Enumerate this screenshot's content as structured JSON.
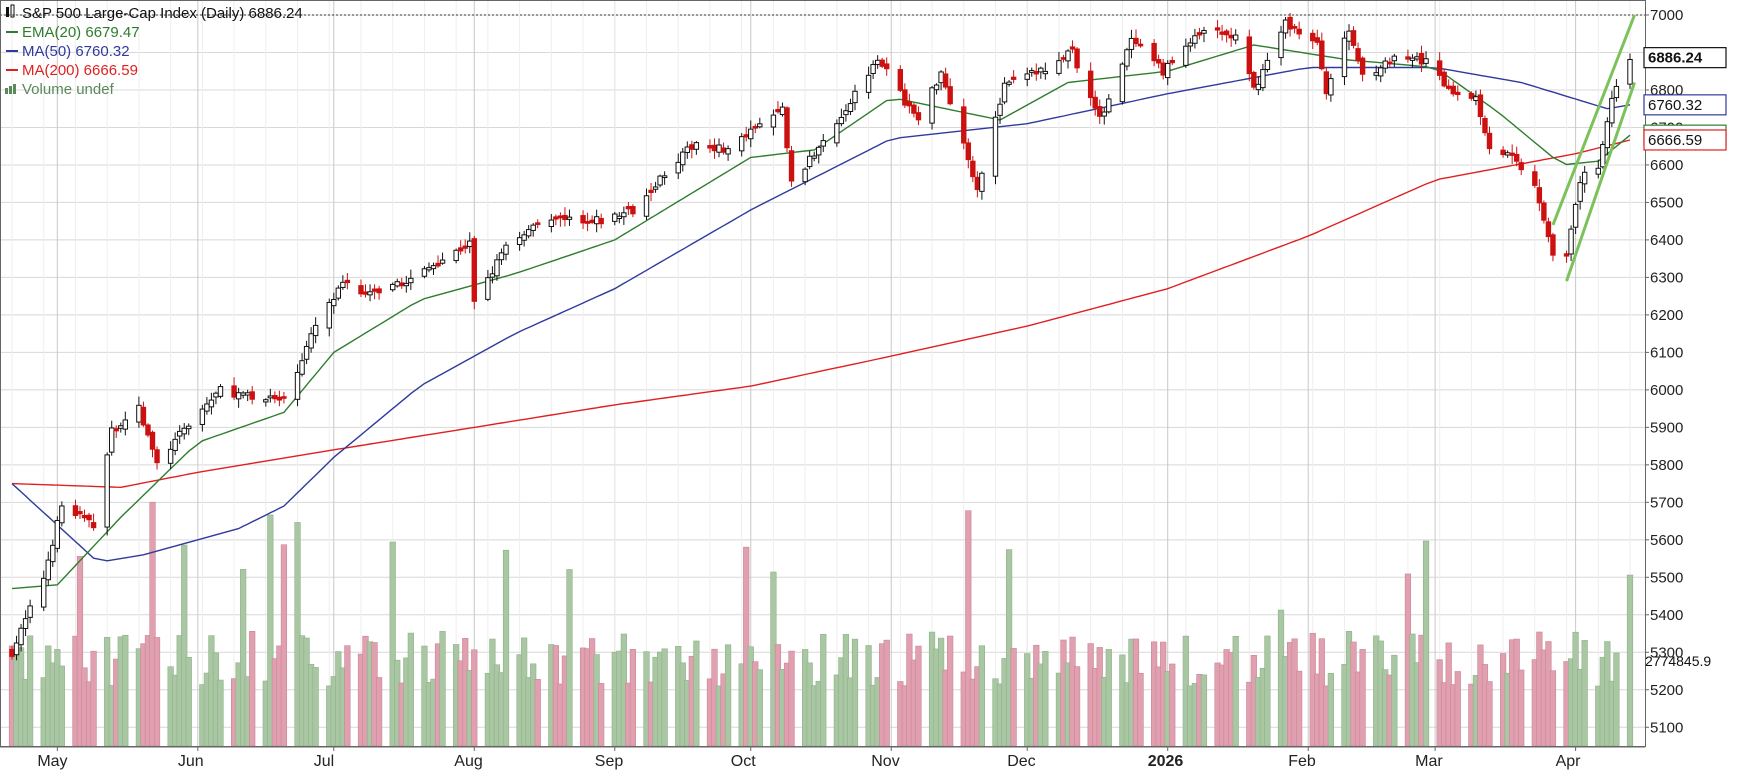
{
  "chart_data": {
    "type": "candlestick",
    "title": "S&P 500 Large-Cap Index (Daily) 6886.24",
    "legend_placement": "top-left",
    "grid": true,
    "x_axis": {
      "ticks": [
        {
          "label": "May",
          "date": "2025-05-01",
          "bold": false
        },
        {
          "label": "Jun",
          "date": "2025-06-01",
          "bold": false
        },
        {
          "label": "Jul",
          "date": "2025-07-01",
          "bold": false
        },
        {
          "label": "Aug",
          "date": "2025-08-01",
          "bold": false
        },
        {
          "label": "Sep",
          "date": "2025-09-01",
          "bold": false
        },
        {
          "label": "Oct",
          "date": "2025-10-01",
          "bold": false
        },
        {
          "label": "Nov",
          "date": "2025-11-01",
          "bold": false
        },
        {
          "label": "Dec",
          "date": "2025-12-01",
          "bold": false
        },
        {
          "label": "2026",
          "date": "2026-01-01",
          "bold": true
        },
        {
          "label": "Feb",
          "date": "2026-02-01",
          "bold": false
        },
        {
          "label": "Mar",
          "date": "2026-03-01",
          "bold": false
        },
        {
          "label": "Apr",
          "date": "2026-04-01",
          "bold": false
        }
      ]
    },
    "y_axis": {
      "position": "right",
      "range": [
        5050,
        7040
      ],
      "ticks": [
        5100,
        5200,
        5300,
        5400,
        5500,
        5600,
        5700,
        5800,
        5900,
        6000,
        6100,
        6200,
        6300,
        6400,
        6500,
        6600,
        6700,
        6800,
        6900,
        7000
      ],
      "volume_label": "2774845.9"
    },
    "reference_line": {
      "value": 7000,
      "style": "dotted"
    },
    "legend": [
      {
        "label": "S&P 500 Large-Cap Index (Daily) 6886.24",
        "color": "#111111",
        "icon": "candlestick-icon"
      },
      {
        "label": "EMA(20) 6679.47",
        "color": "#2e7d2e",
        "icon": "line-icon"
      },
      {
        "label": "MA(50) 6760.32",
        "color": "#2f3a9e",
        "icon": "line-icon"
      },
      {
        "label": "MA(200) 6666.59",
        "color": "#e02020",
        "icon": "line-icon"
      },
      {
        "label": "Volume undef",
        "color": "#5a8a5a",
        "icon": "volume-bars-icon"
      }
    ],
    "last_value_labels": [
      {
        "text": "6886.24",
        "value": 6886.24,
        "border": "#111111",
        "text_color": "#111111",
        "bold": true
      },
      {
        "text": "6760.32",
        "value": 6760.32,
        "border": "#2f3a9e",
        "text_color": "#111111",
        "bold": false
      },
      {
        "text": "6679.47",
        "value": 6679.47,
        "border": "#2e7d2e",
        "text_color": "#111111",
        "bold": false
      },
      {
        "text": "6666.59",
        "value": 6666.59,
        "border": "#e02020",
        "text_color": "#111111",
        "bold": false
      }
    ],
    "price_anchors": [
      [
        "2025-04-21",
        5300
      ],
      [
        "2025-04-28",
        5500
      ],
      [
        "2025-05-02",
        5690
      ],
      [
        "2025-05-09",
        5640
      ],
      [
        "2025-05-13",
        5890
      ],
      [
        "2025-05-19",
        5950
      ],
      [
        "2025-05-23",
        5800
      ],
      [
        "2025-05-30",
        5910
      ],
      [
        "2025-06-06",
        6000
      ],
      [
        "2025-06-13",
        5980
      ],
      [
        "2025-06-20",
        5970
      ],
      [
        "2025-06-27",
        6170
      ],
      [
        "2025-07-03",
        6280
      ],
      [
        "2025-07-11",
        6250
      ],
      [
        "2025-07-18",
        6300
      ],
      [
        "2025-07-31",
        6390
      ],
      [
        "2025-08-01",
        6240
      ],
      [
        "2025-08-08",
        6380
      ],
      [
        "2025-08-15",
        6450
      ],
      [
        "2025-08-22",
        6460
      ],
      [
        "2025-08-29",
        6450
      ],
      [
        "2025-09-05",
        6480
      ],
      [
        "2025-09-12",
        6580
      ],
      [
        "2025-09-19",
        6660
      ],
      [
        "2025-09-26",
        6640
      ],
      [
        "2025-10-08",
        6750
      ],
      [
        "2025-10-10",
        6550
      ],
      [
        "2025-10-17",
        6660
      ],
      [
        "2025-10-24",
        6790
      ],
      [
        "2025-10-29",
        6890
      ],
      [
        "2025-11-04",
        6770
      ],
      [
        "2025-11-07",
        6720
      ],
      [
        "2025-11-12",
        6850
      ],
      [
        "2025-11-20",
        6540
      ],
      [
        "2025-11-26",
        6810
      ],
      [
        "2025-12-05",
        6860
      ],
      [
        "2025-12-11",
        6900
      ],
      [
        "2025-12-17",
        6720
      ],
      [
        "2025-12-24",
        6930
      ],
      [
        "2025-12-31",
        6850
      ],
      [
        "2026-01-09",
        6960
      ],
      [
        "2026-01-16",
        6940
      ],
      [
        "2026-01-20",
        6800
      ],
      [
        "2026-01-27",
        6980
      ],
      [
        "2026-02-03",
        6920
      ],
      [
        "2026-02-05",
        6800
      ],
      [
        "2026-02-10",
        6960
      ],
      [
        "2026-02-13",
        6840
      ],
      [
        "2026-02-20",
        6880
      ],
      [
        "2026-02-27",
        6880
      ],
      [
        "2026-03-04",
        6800
      ],
      [
        "2026-03-10",
        6780
      ],
      [
        "2026-03-13",
        6650
      ],
      [
        "2026-03-18",
        6620
      ],
      [
        "2026-03-23",
        6550
      ],
      [
        "2026-03-27",
        6370
      ],
      [
        "2026-03-30",
        6350
      ],
      [
        "2026-04-02",
        6560
      ],
      [
        "2026-04-06",
        6600
      ],
      [
        "2026-04-09",
        6780
      ],
      [
        "2026-04-13",
        6886.24
      ]
    ],
    "ema20_anchors": [
      [
        "2025-04-21",
        5470
      ],
      [
        "2025-05-01",
        5480
      ],
      [
        "2025-05-15",
        5660
      ],
      [
        "2025-06-01",
        5860
      ],
      [
        "2025-06-20",
        5940
      ],
      [
        "2025-07-01",
        6100
      ],
      [
        "2025-07-20",
        6240
      ],
      [
        "2025-08-10",
        6310
      ],
      [
        "2025-09-01",
        6400
      ],
      [
        "2025-10-01",
        6620
      ],
      [
        "2025-10-15",
        6640
      ],
      [
        "2025-11-01",
        6780
      ],
      [
        "2025-11-25",
        6720
      ],
      [
        "2025-12-10",
        6820
      ],
      [
        "2026-01-01",
        6850
      ],
      [
        "2026-01-20",
        6920
      ],
      [
        "2026-02-10",
        6880
      ],
      [
        "2026-03-01",
        6860
      ],
      [
        "2026-03-15",
        6740
      ],
      [
        "2026-03-29",
        6600
      ],
      [
        "2026-04-06",
        6610
      ],
      [
        "2026-04-13",
        6679.47
      ]
    ],
    "ma50_anchors": [
      [
        "2025-04-21",
        5750
      ],
      [
        "2025-05-10",
        5540
      ],
      [
        "2025-05-20",
        5560
      ],
      [
        "2025-06-10",
        5630
      ],
      [
        "2025-06-20",
        5690
      ],
      [
        "2025-07-01",
        5820
      ],
      [
        "2025-07-20",
        6010
      ],
      [
        "2025-08-10",
        6150
      ],
      [
        "2025-09-01",
        6270
      ],
      [
        "2025-10-01",
        6480
      ],
      [
        "2025-11-01",
        6670
      ],
      [
        "2025-12-01",
        6710
      ],
      [
        "2026-01-01",
        6790
      ],
      [
        "2026-02-01",
        6860
      ],
      [
        "2026-03-01",
        6860
      ],
      [
        "2026-03-20",
        6820
      ],
      [
        "2026-04-08",
        6750
      ],
      [
        "2026-04-13",
        6760.32
      ]
    ],
    "ma200_anchors": [
      [
        "2025-04-21",
        5750
      ],
      [
        "2025-05-15",
        5740
      ],
      [
        "2025-06-01",
        5780
      ],
      [
        "2025-07-01",
        5840
      ],
      [
        "2025-08-01",
        5900
      ],
      [
        "2025-09-01",
        5960
      ],
      [
        "2025-10-01",
        6010
      ],
      [
        "2025-11-01",
        6090
      ],
      [
        "2025-12-01",
        6170
      ],
      [
        "2026-01-01",
        6270
      ],
      [
        "2026-02-01",
        6410
      ],
      [
        "2026-03-01",
        6560
      ],
      [
        "2026-04-01",
        6630
      ],
      [
        "2026-04-13",
        6666.59
      ]
    ],
    "trendlines": [
      {
        "from": [
          "2026-03-27",
          6440
        ],
        "to": [
          "2026-04-14",
          7000
        ],
        "color": "#7cc25a"
      },
      {
        "from": [
          "2026-03-30",
          6290
        ],
        "to": [
          "2026-04-14",
          6820
        ],
        "color": "#7cc25a"
      }
    ]
  }
}
